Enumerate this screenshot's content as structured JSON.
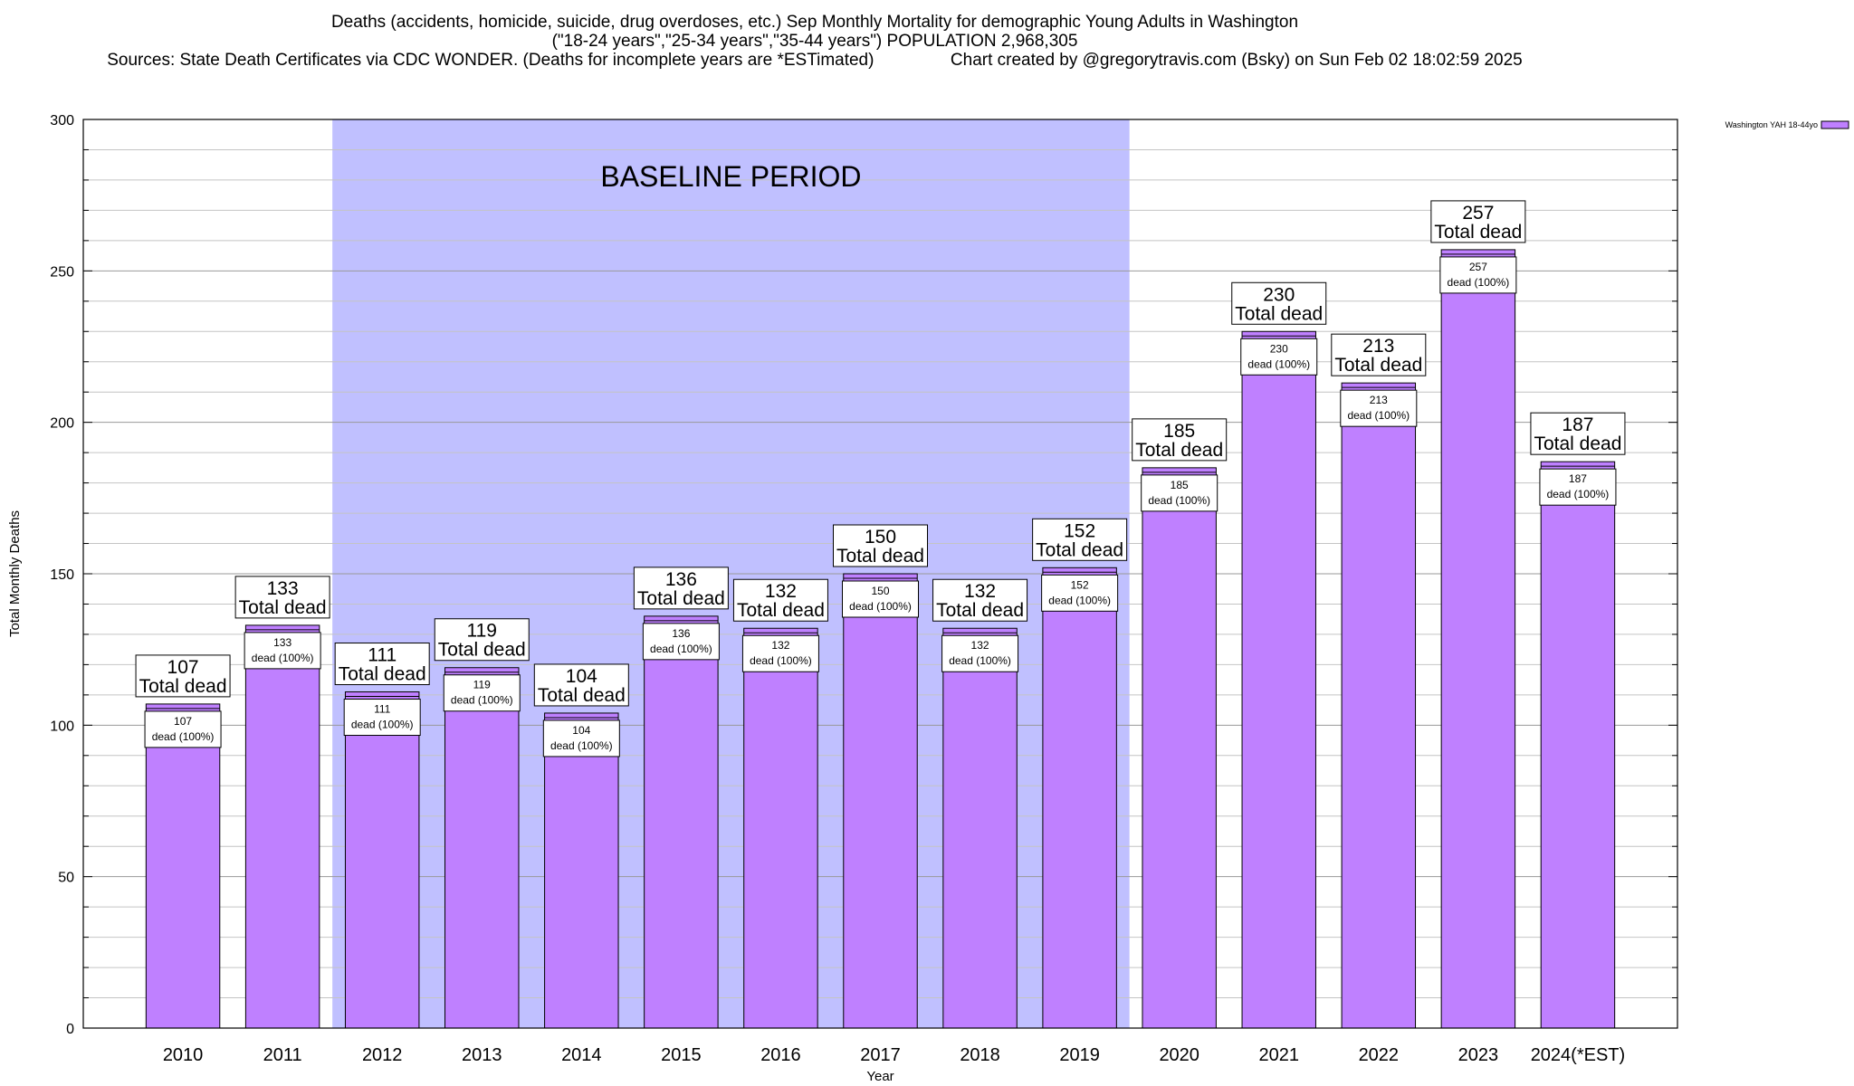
{
  "chart_data": {
    "type": "bar",
    "title_lines": [
      "Deaths (accidents, homicide, suicide, drug overdoses, etc.) Sep Monthly Mortality for demographic Young Adults in Washington",
      "(\"18-24 years\",\"25-34 years\",\"35-44 years\") POPULATION 2,968,305",
      "Sources: State Death Certificates via CDC WONDER. (Deaths for incomplete years are *ESTimated)                Chart created by @gregorytravis.com (Bsky) on Sun Feb 02 18:02:59 2025"
    ],
    "xlabel": "Year",
    "ylabel": "Total Monthly Deaths",
    "ylim": [
      0,
      300
    ],
    "yticks": [
      0,
      50,
      100,
      150,
      200,
      250,
      300
    ],
    "categories": [
      "2010",
      "2011",
      "2012",
      "2013",
      "2014",
      "2015",
      "2016",
      "2017",
      "2018",
      "2019",
      "2020",
      "2021",
      "2022",
      "2023",
      "2024(*EST)"
    ],
    "series": [
      {
        "name": "Washington YAH 18-44yo",
        "color": "#bf80ff",
        "values": [
          107,
          133,
          111,
          119,
          104,
          136,
          132,
          150,
          132,
          152,
          185,
          230,
          213,
          257,
          187
        ]
      }
    ],
    "top_label_suffix": "Total dead",
    "inner_label_suffix": "dead (100%)",
    "baseline": {
      "label": "BASELINE PERIOD",
      "start": "2012",
      "end": "2019",
      "color": "#c0c0ff"
    },
    "grid": true,
    "legend_position": "top-right"
  }
}
